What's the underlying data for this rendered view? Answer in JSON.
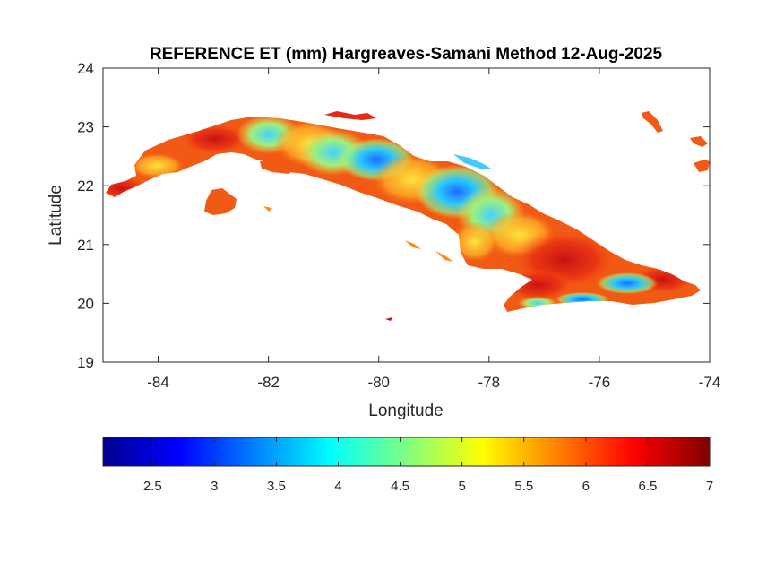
{
  "title": "REFERENCE ET (mm) Hargreaves-Samani Method  12-Aug-2025",
  "map": {
    "x_axis_label": "Longitude",
    "y_axis_label": "Latitude",
    "x_range": [
      -85,
      -74
    ],
    "y_range": [
      19,
      24
    ],
    "x_ticks": [
      {
        "value": -84,
        "label": "-84"
      },
      {
        "value": -82,
        "label": "-82"
      },
      {
        "value": -80,
        "label": "-80"
      },
      {
        "value": -78,
        "label": "-78"
      },
      {
        "value": -76,
        "label": "-76"
      },
      {
        "value": -74,
        "label": "-74"
      }
    ],
    "y_ticks": [
      {
        "value": 19,
        "label": "19"
      },
      {
        "value": 20,
        "label": "20"
      },
      {
        "value": 21,
        "label": "21"
      },
      {
        "value": 22,
        "label": "22"
      },
      {
        "value": 23,
        "label": "23"
      },
      {
        "value": 24,
        "label": "24"
      }
    ]
  },
  "colorbar": {
    "colormap": "jet",
    "range": [
      2.1,
      7.0
    ],
    "ticks": [
      {
        "value": 2.5,
        "label": "2.5"
      },
      {
        "value": 3,
        "label": "3"
      },
      {
        "value": 3.5,
        "label": "3.5"
      },
      {
        "value": 4,
        "label": "4"
      },
      {
        "value": 4.5,
        "label": "4.5"
      },
      {
        "value": 5,
        "label": "5"
      },
      {
        "value": 5.5,
        "label": "5.5"
      },
      {
        "value": 6,
        "label": "6"
      },
      {
        "value": 6.5,
        "label": "6.5"
      },
      {
        "value": 7,
        "label": "7"
      }
    ]
  },
  "colors": {
    "land_dominant": "#f05a14",
    "ocean": "#ffffff",
    "axes": "#262626"
  }
}
